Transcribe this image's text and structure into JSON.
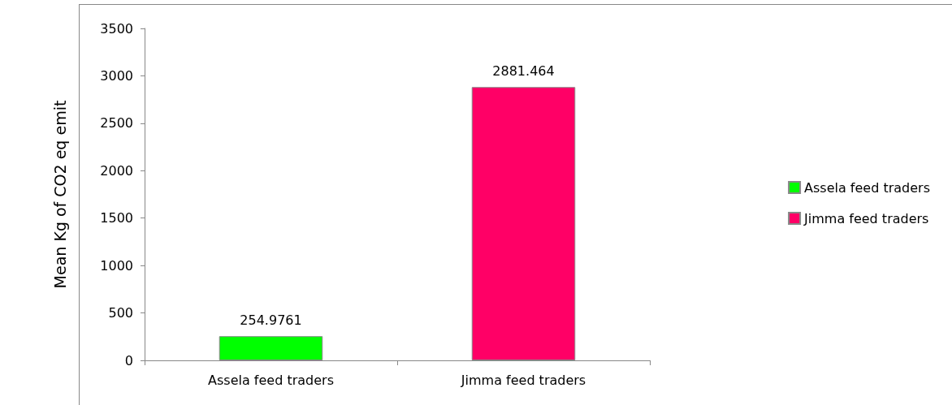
{
  "chart_data": {
    "type": "bar",
    "ylabel": "Mean Kg of CO2 eq emit",
    "categories": [
      "Assela feed traders",
      "Jimma feed traders"
    ],
    "series": [
      {
        "name": "Assela feed traders",
        "color": "#00ff00",
        "values": [
          254.9761,
          null
        ]
      },
      {
        "name": "Jimma feed traders",
        "color": "#ff0066",
        "values": [
          null,
          2881.464
        ]
      }
    ],
    "ylim": [
      0,
      3500
    ],
    "yticks": [
      0,
      500,
      1000,
      1500,
      2000,
      2500,
      3000,
      3500
    ],
    "grid": false,
    "legend": "right",
    "data_labels": true
  }
}
